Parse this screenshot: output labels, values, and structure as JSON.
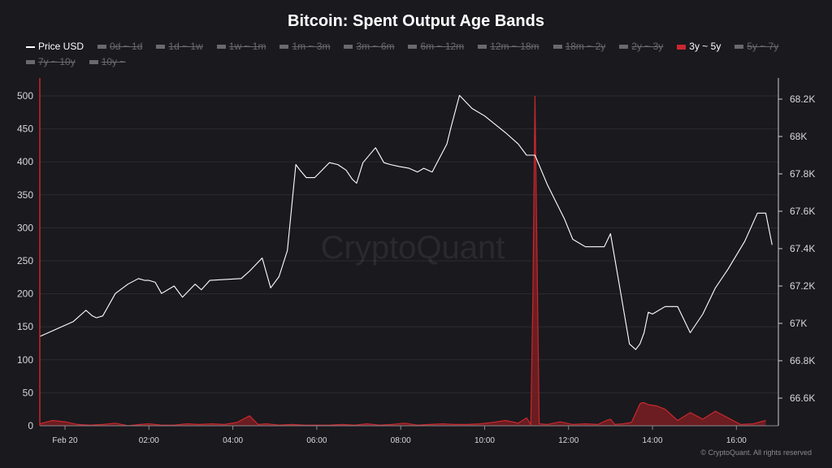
{
  "title": "Bitcoin: Spent Output Age Bands",
  "legend": [
    {
      "label": "Price USD",
      "state": "line"
    },
    {
      "label": "0d ~ 1d",
      "state": "off"
    },
    {
      "label": "1d ~ 1w",
      "state": "off"
    },
    {
      "label": "1w ~ 1m",
      "state": "off"
    },
    {
      "label": "1m ~ 3m",
      "state": "off"
    },
    {
      "label": "3m ~ 6m",
      "state": "off"
    },
    {
      "label": "6m ~ 12m",
      "state": "off"
    },
    {
      "label": "12m ~ 18m",
      "state": "off"
    },
    {
      "label": "18m ~ 2y",
      "state": "off"
    },
    {
      "label": "2y ~ 3y",
      "state": "off"
    },
    {
      "label": "3y ~ 5y",
      "state": "on"
    },
    {
      "label": "5y ~ 7y",
      "state": "off"
    },
    {
      "label": "7y ~ 10y",
      "state": "off"
    },
    {
      "label": "10y ~",
      "state": "off"
    }
  ],
  "watermark": "CryptoQuant",
  "footer": "© CryptoQuant. All rights reserved",
  "colors": {
    "background": "#1a191e",
    "price_line": "#ffffff",
    "band": "#c8282d",
    "band_fill": "#7a1e22",
    "grid": "#2c2b30",
    "axis_text": "#d8d8dc"
  },
  "chart_data": {
    "type": "line",
    "x_unit": "hours",
    "x_range": [
      -0.6,
      17.0
    ],
    "x_ticks": [
      {
        "x": 0,
        "label": "Feb 20"
      },
      {
        "x": 2,
        "label": "02:00"
      },
      {
        "x": 4,
        "label": "04:00"
      },
      {
        "x": 6,
        "label": "06:00"
      },
      {
        "x": 8,
        "label": "08:00"
      },
      {
        "x": 10,
        "label": "10:00"
      },
      {
        "x": 12,
        "label": "12:00"
      },
      {
        "x": 14,
        "label": "14:00"
      },
      {
        "x": 16,
        "label": "16:00"
      }
    ],
    "y_left": {
      "range": [
        0,
        500
      ],
      "ticks": [
        0,
        50,
        100,
        150,
        200,
        250,
        300,
        350,
        400,
        450,
        500
      ]
    },
    "y_right": {
      "range": [
        66500,
        68200
      ],
      "ticks": [
        {
          "value": 66600,
          "label": "66.6K"
        },
        {
          "value": 66800,
          "label": "66.8K"
        },
        {
          "value": 67000,
          "label": "67K"
        },
        {
          "value": 67200,
          "label": "67.2K"
        },
        {
          "value": 67400,
          "label": "67.4K"
        },
        {
          "value": 67600,
          "label": "67.6K"
        },
        {
          "value": 67800,
          "label": "67.8K"
        },
        {
          "value": 68000,
          "label": "68K"
        },
        {
          "value": 68200,
          "label": "68.2K"
        }
      ]
    },
    "grid": true,
    "legend_position": "top",
    "series": [
      {
        "name": "Price USD",
        "axis": "right",
        "x": [
          -0.6,
          -0.1,
          0.2,
          0.5,
          0.65,
          0.75,
          0.9,
          1.2,
          1.5,
          1.75,
          1.9,
          2.0,
          2.15,
          2.3,
          2.6,
          2.8,
          3.1,
          3.25,
          3.45,
          4.2,
          4.4,
          4.7,
          4.9,
          5.1,
          5.3,
          5.5,
          5.6,
          5.75,
          5.95,
          6.3,
          6.5,
          6.7,
          6.85,
          6.95,
          7.1,
          7.4,
          7.6,
          7.75,
          7.95,
          8.2,
          8.4,
          8.55,
          8.75,
          9.1,
          9.2,
          9.4,
          9.7,
          10.0,
          10.5,
          10.8,
          11.0,
          11.2,
          11.5,
          11.9,
          12.1,
          12.4,
          12.6,
          12.85,
          13.0,
          13.2,
          13.45,
          13.6,
          13.7,
          13.8,
          13.9,
          14.0,
          14.3,
          14.6,
          14.9,
          15.2,
          15.5,
          15.8,
          16.2,
          16.5,
          16.7,
          16.85
        ],
        "y": [
          66.93,
          66.98,
          67.01,
          67.07,
          67.04,
          67.03,
          67.04,
          67.16,
          67.21,
          67.24,
          67.23,
          67.23,
          67.22,
          67.16,
          67.2,
          67.14,
          67.21,
          67.18,
          67.23,
          67.24,
          67.28,
          67.35,
          67.19,
          67.25,
          67.39,
          67.85,
          67.82,
          67.78,
          67.78,
          67.86,
          67.85,
          67.82,
          67.77,
          67.75,
          67.86,
          67.94,
          67.86,
          67.85,
          67.84,
          67.83,
          67.81,
          67.83,
          67.81,
          67.96,
          68.05,
          68.22,
          68.15,
          68.11,
          68.02,
          67.96,
          67.9,
          67.9,
          67.74,
          67.56,
          67.45,
          67.41,
          67.41,
          67.41,
          67.48,
          67.22,
          66.89,
          66.86,
          66.89,
          66.95,
          67.06,
          67.05,
          67.09,
          67.09,
          66.95,
          67.05,
          67.19,
          67.29,
          67.44,
          67.59,
          67.59,
          67.42
        ],
        "values_in_thousands_usd": true
      },
      {
        "name": "3y ~ 5y",
        "axis": "left",
        "x": [
          -0.6,
          -0.3,
          0.0,
          0.3,
          0.6,
          0.9,
          1.2,
          1.5,
          1.8,
          2.0,
          2.3,
          2.6,
          2.9,
          3.2,
          3.5,
          3.8,
          4.1,
          4.4,
          4.6,
          4.8,
          5.1,
          5.4,
          5.7,
          6.0,
          6.3,
          6.6,
          6.9,
          7.2,
          7.5,
          7.8,
          8.1,
          8.4,
          8.7,
          9.0,
          9.3,
          9.6,
          9.9,
          10.2,
          10.5,
          10.8,
          11.0,
          11.1,
          11.15,
          11.2,
          11.3,
          11.5,
          11.8,
          12.1,
          12.4,
          12.7,
          12.9,
          13.0,
          13.1,
          13.3,
          13.5,
          13.7,
          13.75,
          13.8,
          13.9,
          14.1,
          14.3,
          14.6,
          14.9,
          15.2,
          15.5,
          15.8,
          16.1,
          16.4,
          16.7
        ],
        "y": [
          3,
          8,
          6,
          2,
          1,
          2,
          4,
          0,
          2,
          3,
          1,
          1,
          3,
          2,
          3,
          2,
          5,
          15,
          2,
          3,
          1,
          2,
          1,
          1,
          1,
          2,
          1,
          3,
          1,
          2,
          4,
          1,
          2,
          3,
          2,
          2,
          3,
          5,
          8,
          4,
          12,
          2,
          200,
          500,
          3,
          2,
          6,
          2,
          3,
          2,
          8,
          10,
          2,
          3,
          5,
          33,
          35,
          35,
          32,
          30,
          25,
          8,
          20,
          10,
          22,
          12,
          2,
          3,
          8
        ]
      }
    ]
  }
}
